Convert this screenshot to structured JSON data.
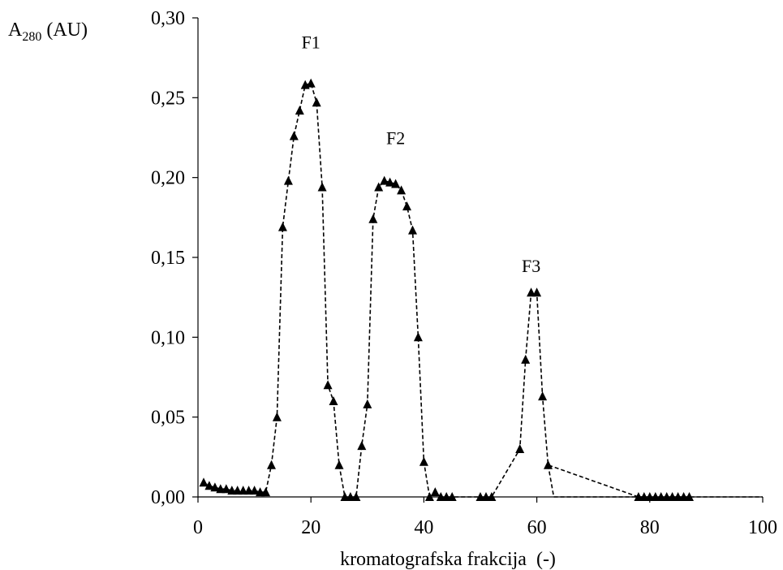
{
  "chart_data": {
    "type": "line",
    "title": "",
    "ylabel_main": "A",
    "ylabel_sub": "280",
    "ylabel_unit": " (AU)",
    "xlabel": "kromatografska frakcija  (-)",
    "xlim": [
      0,
      100
    ],
    "ylim": [
      0,
      0.3
    ],
    "x_ticks": [
      0,
      20,
      40,
      60,
      80,
      100
    ],
    "x_tick_labels": [
      "0",
      "20",
      "40",
      "60",
      "80",
      "100"
    ],
    "y_ticks": [
      0,
      0.05,
      0.1,
      0.15,
      0.2,
      0.25,
      0.3
    ],
    "y_tick_labels": [
      "0,00",
      "0,05",
      "0,10",
      "0,15",
      "0,20",
      "0,25",
      "0,30"
    ],
    "grid": false,
    "legend": "none",
    "colors": {
      "line": "#000000",
      "marker": "#000000"
    },
    "annotations": [
      {
        "text": "F1",
        "x": 20,
        "y": 0.285
      },
      {
        "text": "F2",
        "x": 35,
        "y": 0.225
      },
      {
        "text": "F3",
        "x": 59,
        "y": 0.145
      }
    ],
    "series": [
      {
        "line_style": "dashed",
        "marker": "triangle",
        "x": [
          1,
          2,
          3,
          4,
          5,
          6,
          7,
          8,
          9,
          10,
          11,
          12,
          13,
          14,
          15,
          16,
          17,
          18,
          19,
          20,
          21,
          22,
          23,
          24,
          25,
          26,
          27,
          28,
          29,
          30,
          31,
          32,
          33,
          34,
          35,
          36,
          37,
          38,
          39,
          40,
          41,
          42,
          43,
          44,
          45,
          50,
          51,
          52,
          57,
          58,
          59,
          60,
          61,
          62,
          78,
          79,
          80,
          81,
          82,
          83,
          84,
          85,
          86,
          87
        ],
        "y": [
          0.009,
          0.007,
          0.006,
          0.005,
          0.005,
          0.004,
          0.004,
          0.004,
          0.004,
          0.004,
          0.003,
          0.003,
          0.02,
          0.05,
          0.169,
          0.198,
          0.226,
          0.242,
          0.258,
          0.259,
          0.247,
          0.194,
          0.07,
          0.06,
          0.02,
          0.0,
          0.0,
          0.0,
          0.032,
          0.058,
          0.174,
          0.194,
          0.198,
          0.197,
          0.196,
          0.192,
          0.182,
          0.167,
          0.1,
          0.022,
          0.0,
          0.003,
          0.0,
          0.0,
          0.0,
          0.0,
          0.0,
          0.0,
          0.03,
          0.086,
          0.128,
          0.128,
          0.063,
          0.02,
          0.0,
          0.0,
          0.0,
          0.0,
          0.0,
          0.0,
          0.0,
          0.0,
          0.0,
          0.0
        ]
      },
      {
        "line_style": "dashed",
        "marker": "none",
        "x": [
          62,
          63,
          100
        ],
        "y": [
          0.02,
          0.0,
          0.0
        ]
      }
    ]
  }
}
